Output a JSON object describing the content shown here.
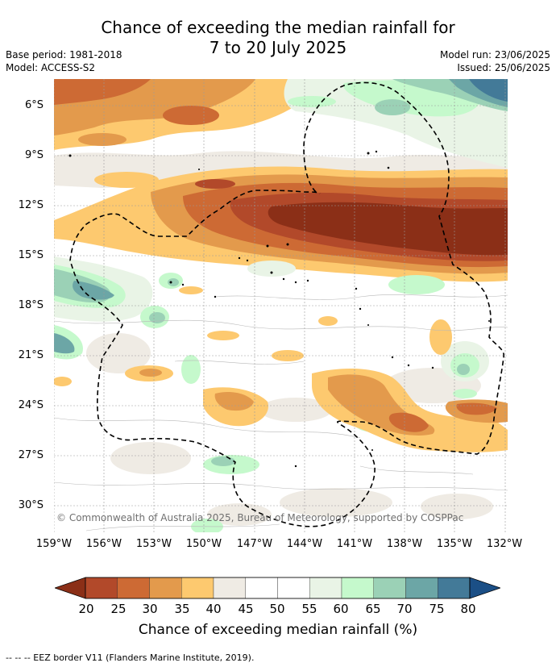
{
  "title": {
    "line1": "Chance of exceeding the median rainfall for",
    "line2": "7 to 20 July 2025"
  },
  "meta_left": {
    "base_period": "Base period: 1981-2018",
    "model": "Model: ACCESS-S2"
  },
  "meta_right": {
    "model_run": "Model run: 23/06/2025",
    "issued": "Issued: 25/06/2025"
  },
  "map": {
    "lat_ticks": [
      "6°S",
      "9°S",
      "12°S",
      "15°S",
      "18°S",
      "21°S",
      "24°S",
      "27°S",
      "30°S"
    ],
    "lon_ticks": [
      "159°W",
      "156°W",
      "153°W",
      "150°W",
      "147°W",
      "144°W",
      "141°W",
      "138°W",
      "135°W",
      "132°W"
    ],
    "copyright": "© Commonwealth of Australia 2025, Bureau of Meteorology, supported by COSPPac"
  },
  "colorbar": {
    "ticks": [
      "20",
      "25",
      "30",
      "35",
      "40",
      "45",
      "50",
      "55",
      "60",
      "65",
      "70",
      "75",
      "80"
    ],
    "colors": [
      "#8b2f17",
      "#b2492a",
      "#cd6a34",
      "#e39a4c",
      "#fdc96f",
      "#efebe4",
      "#ffffff",
      "#ffffff",
      "#e9f4e6",
      "#c5f9cc",
      "#9bd1b6",
      "#6ca6a6",
      "#437a98",
      "#1b4f86"
    ],
    "label": "Chance of exceeding median rainfall (%)"
  },
  "legend": {
    "text": "--  --  -- EEZ border V11 (Flanders Marine Institute, 2019)."
  }
}
